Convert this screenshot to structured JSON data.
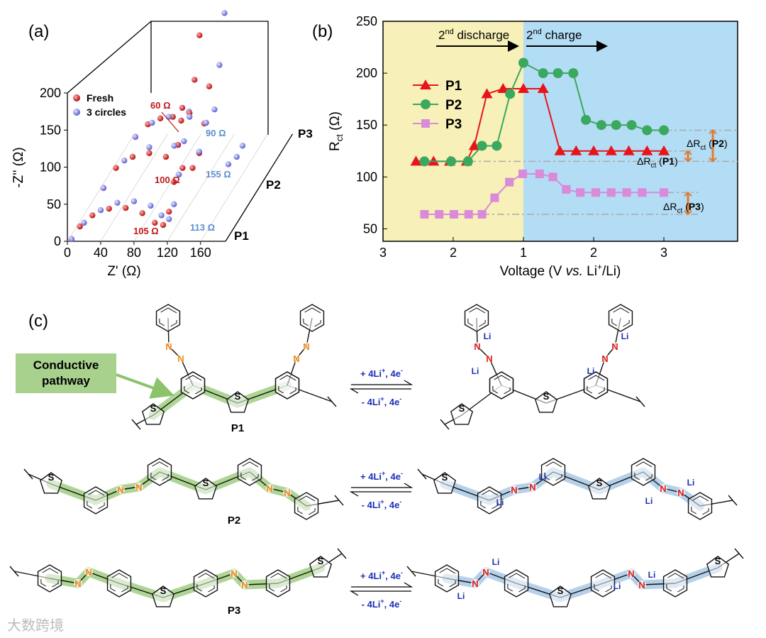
{
  "panel_labels": [
    "(a)",
    "(b)",
    "(c)"
  ],
  "chart_data": [
    {
      "type": "scatter3d",
      "ylabel": "-Z'' (Ω)",
      "xlabel": "Z' (Ω)",
      "xlim": [
        0,
        190
      ],
      "xticks": [
        0,
        40,
        80,
        120,
        160
      ],
      "ylim": [
        0,
        200
      ],
      "yticks": [
        0,
        50,
        100,
        150,
        200
      ],
      "legend": [
        {
          "name": "Fresh",
          "color": "#d42020"
        },
        {
          "name": "3 circles",
          "color": "#6f74e0"
        }
      ],
      "layers": [
        {
          "name": "P1",
          "annotations": [
            "105 Ω",
            "113 Ω"
          ],
          "series": [
            {
              "x": [
                5,
                15,
                30,
                50,
                70,
                90,
                105,
                115,
                122,
                128,
                133,
                138
              ],
              "values": [
                3,
                20,
                35,
                44,
                45,
                38,
                25,
                22,
                40,
                80,
                130,
                180
              ]
            },
            {
              "x": [
                5,
                20,
                40,
                60,
                80,
                100,
                113,
                122,
                128,
                134,
                140,
                146
              ],
              "values": [
                3,
                25,
                42,
                52,
                54,
                48,
                35,
                30,
                50,
                90,
                135,
                175
              ]
            }
          ]
        },
        {
          "name": "P2",
          "annotations": [
            "100 Ω",
            "155 Ω"
          ],
          "series": [
            {
              "x": [
                5,
                20,
                40,
                60,
                80,
                100,
                112,
                120,
                126,
                132
              ],
              "values": [
                3,
                30,
                45,
                50,
                45,
                30,
                30,
                50,
                90,
                140
              ]
            },
            {
              "x": [
                5,
                30,
                60,
                90,
                120,
                155,
                165,
                172
              ],
              "values": [
                3,
                40,
                58,
                60,
                52,
                35,
                45,
                60
              ]
            }
          ]
        },
        {
          "name": "P3",
          "annotations": [
            "60 Ω",
            "90 Ω"
          ],
          "series": [
            {
              "x": [
                5,
                20,
                35,
                50,
                60,
                70,
                76,
                82,
                88
              ],
              "values": [
                3,
                20,
                28,
                30,
                25,
                35,
                80,
                140,
                200
              ]
            },
            {
              "x": [
                5,
                25,
                45,
                70,
                90,
                100,
                106,
                112
              ],
              "values": [
                3,
                22,
                30,
                30,
                22,
                40,
                100,
                170
              ]
            }
          ]
        }
      ]
    },
    {
      "type": "line",
      "ylabel": [
        "R",
        "ct",
        " (Ω)"
      ],
      "xlabel": [
        "Voltage (V ",
        "vs.",
        " Li",
        "+",
        "/Li)"
      ],
      "ylim": [
        38,
        250
      ],
      "yticks": [
        50,
        100,
        150,
        200,
        250
      ],
      "discharge": {
        "xlim": [
          3,
          1
        ],
        "xticks": [
          3,
          2,
          1
        ],
        "color": "#f7f0b8"
      },
      "charge": {
        "xlim": [
          1,
          4.05
        ],
        "xticks": [
          2,
          3
        ],
        "color": "#b3dcf5"
      },
      "annotations": [
        [
          "2",
          "nd",
          " discharge"
        ],
        [
          "2",
          "nd",
          " charge"
        ]
      ],
      "reference_lines": [
        64,
        85,
        115,
        125,
        145
      ],
      "delta_labels": [
        [
          "ΔR",
          "ct",
          " (",
          "P2",
          ")"
        ],
        [
          "ΔR",
          "ct",
          " (",
          "P1",
          ")"
        ],
        [
          "ΔR",
          "ct",
          " (",
          "P3",
          ")"
        ]
      ],
      "series": [
        {
          "name": "P1",
          "color": "#e8141a",
          "marker": "triangle",
          "discharge": {
            "x": [
              2.53,
              2.28,
              2.05,
              1.81,
              1.7,
              1.52,
              1.29,
              1.0
            ],
            "values": [
              115,
              115,
              115,
              115,
              130,
              180,
              185,
              185
            ]
          },
          "charge": {
            "x": [
              1.28,
              1.52,
              1.75,
              2.0,
              2.25,
              2.5,
              2.76,
              3.0
            ],
            "values": [
              185,
              125,
              125,
              125,
              125,
              125,
              125,
              125
            ]
          }
        },
        {
          "name": "P2",
          "color": "#3aa85e",
          "marker": "circle",
          "discharge": {
            "x": [
              2.41,
              2.03,
              1.79,
              1.59,
              1.38,
              1.19,
              1.0
            ],
            "values": [
              115,
              115,
              115,
              130,
              130,
              180,
              210
            ]
          },
          "charge": {
            "x": [
              1.28,
              1.49,
              1.71,
              1.89,
              2.11,
              2.32,
              2.54,
              2.76,
              3.0
            ],
            "values": [
              200,
              200,
              200,
              155,
              150,
              150,
              150,
              145,
              145
            ]
          }
        },
        {
          "name": "P3",
          "color": "#d98ad9",
          "marker": "square",
          "discharge": {
            "x": [
              2.41,
              2.2,
              1.99,
              1.78,
              1.59,
              1.41,
              1.2,
              1.01
            ],
            "values": [
              64,
              64,
              64,
              64,
              64,
              80,
              95,
              103
            ]
          },
          "charge": {
            "x": [
              1.23,
              1.42,
              1.61,
              1.81,
              2.03,
              2.25,
              2.47,
              2.69,
              3.0
            ],
            "values": [
              103,
              100,
              88,
              85,
              85,
              85,
              85,
              85,
              85
            ]
          }
        }
      ]
    }
  ],
  "scheme": {
    "atoms": {
      "S": "S",
      "N": "N",
      "Li": "Li"
    },
    "conductive": [
      "Conductive",
      "pathway"
    ],
    "forward": [
      "+ 4Li",
      "+",
      ", 4e",
      "-"
    ],
    "backward": [
      "- 4Li",
      "+",
      ", 4e",
      "-"
    ],
    "polymers": [
      "P1",
      "P2",
      "P3"
    ]
  },
  "watermark": "大数跨境"
}
